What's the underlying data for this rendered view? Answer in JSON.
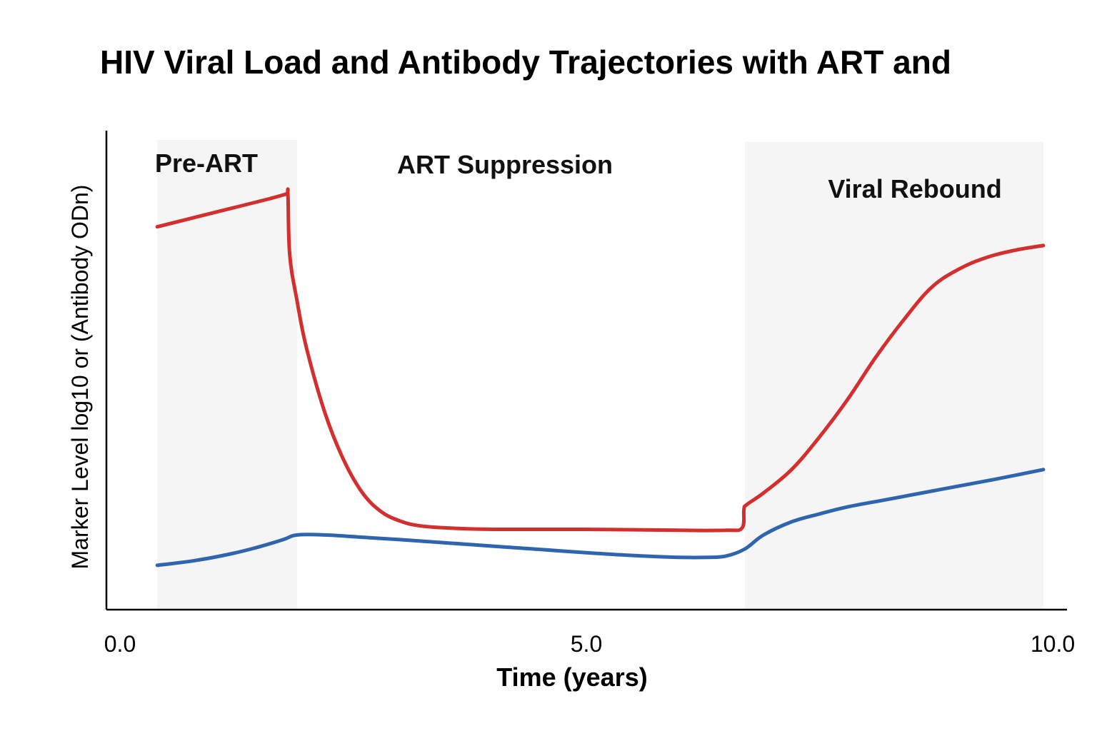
{
  "chart_data": {
    "type": "line",
    "title": "HIV Viral Load and Antibody Trajectories with ART and",
    "xlabel": "Time (years)",
    "ylabel": "Marker Level log10 or (Antibody ODn)",
    "xlim": [
      0.0,
      10.0
    ],
    "ylim": [
      0,
      10
    ],
    "x_ticks": [
      "0.0",
      "5.0",
      "10.0"
    ],
    "grid": false,
    "legend": "none",
    "phases": [
      {
        "label": "Pre-ART",
        "x_start": 0.4,
        "x_end": 1.9,
        "shaded": true
      },
      {
        "label": "ART Suppression",
        "x_start": 1.9,
        "x_end": 6.7,
        "shaded": false
      },
      {
        "label": "Viral Rebound",
        "x_start": 6.7,
        "x_end": 9.9,
        "shaded": true
      }
    ],
    "series": [
      {
        "color": "#d32f2f",
        "x": [
          0.4,
          0.8,
          1.2,
          1.6,
          1.78,
          1.8,
          1.82,
          1.9,
          2.0,
          2.2,
          2.4,
          2.6,
          2.8,
          3.0,
          3.2,
          3.5,
          4.0,
          5.0,
          6.0,
          6.5,
          6.67,
          6.69,
          6.72,
          6.9,
          7.2,
          7.5,
          7.8,
          8.1,
          8.4,
          8.7,
          9.0,
          9.3,
          9.6,
          9.9
        ],
        "y": [
          8.2,
          8.4,
          8.6,
          8.8,
          8.9,
          8.9,
          7.6,
          6.6,
          5.6,
          4.2,
          3.2,
          2.5,
          2.1,
          1.9,
          1.8,
          1.75,
          1.72,
          1.72,
          1.7,
          1.7,
          1.75,
          2.15,
          2.25,
          2.5,
          3.0,
          3.7,
          4.5,
          5.4,
          6.2,
          6.9,
          7.3,
          7.55,
          7.7,
          7.8
        ]
      },
      {
        "color": "#2f64ae",
        "x": [
          0.4,
          0.8,
          1.2,
          1.5,
          1.75,
          1.9,
          2.2,
          2.6,
          3.0,
          3.5,
          4.0,
          4.5,
          5.0,
          5.5,
          6.0,
          6.3,
          6.5,
          6.7,
          6.9,
          7.2,
          7.5,
          7.8,
          8.2,
          8.6,
          9.0,
          9.4,
          9.9
        ],
        "y": [
          0.95,
          1.05,
          1.2,
          1.35,
          1.5,
          1.6,
          1.6,
          1.55,
          1.5,
          1.43,
          1.36,
          1.29,
          1.22,
          1.16,
          1.12,
          1.12,
          1.15,
          1.3,
          1.6,
          1.88,
          2.05,
          2.2,
          2.35,
          2.5,
          2.65,
          2.8,
          3.0
        ]
      }
    ]
  }
}
